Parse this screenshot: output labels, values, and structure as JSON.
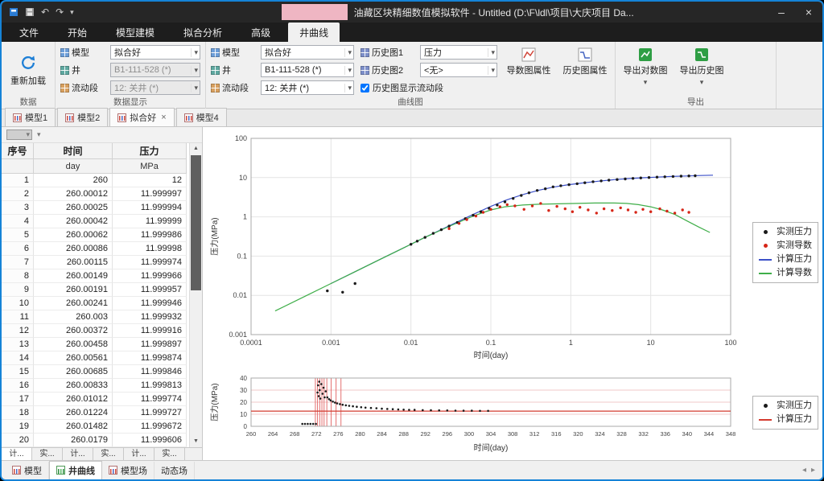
{
  "window": {
    "title": "油藏区块精细数值模拟软件 - Untitled (D:\\F\\ldl\\项目\\大庆项目 Da...",
    "controls": {
      "minimize": "–",
      "close": "×"
    }
  },
  "icons": {
    "caret": "▾",
    "close": "×",
    "minimize": "–",
    "undo": "↶",
    "redo": "↷",
    "up": "▲",
    "down": "▼",
    "back": "◂",
    "forward": "▸"
  },
  "menu": {
    "tabs": [
      "文件",
      "开始",
      "模型建模",
      "拟合分析",
      "高级",
      "井曲线"
    ],
    "active": "井曲线"
  },
  "ribbon": {
    "data_group": {
      "label": "数据",
      "reload_button": "重新加载"
    },
    "display_group": {
      "label": "数据显示",
      "rows": [
        {
          "label": "模型",
          "value": "拟合好",
          "enabled": true
        },
        {
          "label": "井",
          "value": "B1-111-528 (*)",
          "enabled": false
        },
        {
          "label": "流动段",
          "value": "12: 关井 (*)",
          "enabled": false
        }
      ]
    },
    "curve_group": {
      "label": "曲线图",
      "col1": [
        {
          "label": "模型",
          "value": "拟合好"
        },
        {
          "label": "井",
          "value": "B1-111-528 (*)"
        },
        {
          "label": "流动段",
          "value": "12: 关井 (*)"
        }
      ],
      "col2": [
        {
          "label": "历史图1",
          "value": "压力"
        },
        {
          "label": "历史图2",
          "value": "<无>"
        }
      ],
      "checkbox": {
        "label": "历史图显示流动段",
        "checked": "checked"
      },
      "buttons": [
        {
          "label": "导数图属性"
        },
        {
          "label": "历史图属性"
        }
      ]
    },
    "export_group": {
      "label": "导出",
      "buttons": [
        {
          "label": "导出对数图"
        },
        {
          "label": "导出历史图"
        }
      ]
    }
  },
  "doc_tabs": [
    {
      "label": "模型1"
    },
    {
      "label": "模型2"
    },
    {
      "label": "拟合好",
      "active": true,
      "closable": true
    },
    {
      "label": "模型4"
    }
  ],
  "table": {
    "headers": [
      "序号",
      "时间",
      "压力"
    ],
    "units": [
      "",
      "day",
      "MPa"
    ],
    "rows": [
      [
        "1",
        "260",
        "12"
      ],
      [
        "2",
        "260.00012",
        "11.999997"
      ],
      [
        "3",
        "260.00025",
        "11.999994"
      ],
      [
        "4",
        "260.00042",
        "11.99999"
      ],
      [
        "5",
        "260.00062",
        "11.999986"
      ],
      [
        "6",
        "260.00086",
        "11.99998"
      ],
      [
        "7",
        "260.00115",
        "11.999974"
      ],
      [
        "8",
        "260.00149",
        "11.999966"
      ],
      [
        "9",
        "260.00191",
        "11.999957"
      ],
      [
        "10",
        "260.00241",
        "11.999946"
      ],
      [
        "11",
        "260.003",
        "11.999932"
      ],
      [
        "12",
        "260.00372",
        "11.999916"
      ],
      [
        "13",
        "260.00458",
        "11.999897"
      ],
      [
        "14",
        "260.00561",
        "11.999874"
      ],
      [
        "15",
        "260.00685",
        "11.999846"
      ],
      [
        "16",
        "260.00833",
        "11.999813"
      ],
      [
        "17",
        "260.01012",
        "11.999774"
      ],
      [
        "18",
        "260.01224",
        "11.999727"
      ],
      [
        "19",
        "260.01482",
        "11.999672"
      ],
      [
        "20",
        "260.0179",
        "11.999606"
      ]
    ],
    "sheet_tabs": [
      "计...",
      "实...",
      "计...",
      "实...",
      "计...",
      "实..."
    ]
  },
  "status_bar": {
    "tabs": [
      {
        "label": "模型"
      },
      {
        "label": "井曲线",
        "active": true
      },
      {
        "label": "模型场"
      },
      {
        "label": "动态场"
      }
    ]
  },
  "chart_data": [
    {
      "type": "scatter",
      "title": "",
      "xlabel": "时间(day)",
      "ylabel": "压力(MPa)",
      "xscale": "log",
      "yscale": "log",
      "xlim": [
        0.0001,
        100
      ],
      "ylim": [
        0.001,
        100
      ],
      "x_ticks": [
        "0.0001",
        "0.001",
        "0.01",
        "0.1",
        "1",
        "10",
        "100"
      ],
      "y_ticks": [
        "100",
        "10",
        "1",
        "0.1",
        "0.01",
        "0.001"
      ],
      "grid": true,
      "grid_color": "#e4e4e4",
      "legend_position": "right",
      "series": [
        {
          "name": "实测压力",
          "kind": "scatter",
          "color": "#1a1a1a",
          "points": [
            [
              0.0009,
              0.013
            ],
            [
              0.0014,
              0.012
            ],
            [
              0.002,
              0.02
            ],
            [
              0.01,
              0.2
            ],
            [
              0.012,
              0.24
            ],
            [
              0.015,
              0.3
            ],
            [
              0.019,
              0.38
            ],
            [
              0.024,
              0.47
            ],
            [
              0.03,
              0.58
            ],
            [
              0.038,
              0.72
            ],
            [
              0.048,
              0.9
            ],
            [
              0.06,
              1.1
            ],
            [
              0.075,
              1.35
            ],
            [
              0.095,
              1.65
            ],
            [
              0.12,
              2.0
            ],
            [
              0.15,
              2.4
            ],
            [
              0.19,
              2.95
            ],
            [
              0.24,
              3.5
            ],
            [
              0.3,
              4.1
            ],
            [
              0.38,
              4.7
            ],
            [
              0.48,
              5.2
            ],
            [
              0.6,
              5.8
            ],
            [
              0.75,
              6.2
            ],
            [
              0.95,
              6.6
            ],
            [
              1.2,
              7.0
            ],
            [
              1.5,
              7.4
            ],
            [
              1.9,
              7.85
            ],
            [
              2.4,
              8.25
            ],
            [
              3,
              8.6
            ],
            [
              3.8,
              8.95
            ],
            [
              4.8,
              9.25
            ],
            [
              6,
              9.55
            ],
            [
              7.5,
              9.8
            ],
            [
              9.5,
              10.05
            ],
            [
              12,
              10.3
            ],
            [
              15,
              10.5
            ],
            [
              19,
              10.7
            ],
            [
              24,
              10.9
            ],
            [
              30,
              11.05
            ],
            [
              36,
              11.15
            ]
          ]
        },
        {
          "name": "实测导数",
          "kind": "scatter",
          "color": "#d62517",
          "points": [
            [
              0.03,
              0.5
            ],
            [
              0.04,
              0.68
            ],
            [
              0.05,
              0.85
            ],
            [
              0.065,
              1.05
            ],
            [
              0.08,
              1.3
            ],
            [
              0.1,
              1.55
            ],
            [
              0.13,
              1.8
            ],
            [
              0.16,
              2.05
            ],
            [
              0.2,
              1.9
            ],
            [
              0.26,
              1.55
            ],
            [
              0.33,
              1.9
            ],
            [
              0.42,
              2.2
            ],
            [
              0.53,
              1.45
            ],
            [
              0.67,
              1.85
            ],
            [
              0.85,
              1.6
            ],
            [
              1.05,
              1.35
            ],
            [
              1.3,
              1.75
            ],
            [
              1.65,
              1.5
            ],
            [
              2.1,
              1.25
            ],
            [
              2.6,
              1.6
            ],
            [
              3.3,
              1.45
            ],
            [
              4.2,
              1.7
            ],
            [
              5.2,
              1.5
            ],
            [
              6.5,
              1.3
            ],
            [
              8,
              1.55
            ],
            [
              10,
              1.35
            ],
            [
              13,
              1.6
            ],
            [
              16,
              1.4
            ],
            [
              20,
              1.25
            ],
            [
              25,
              1.5
            ],
            [
              30,
              1.3
            ]
          ]
        },
        {
          "name": "计算压力",
          "kind": "line",
          "color": "#3c50c8",
          "points": [
            [
              0.001,
              0.02
            ],
            [
              0.002,
              0.04
            ],
            [
              0.004,
              0.08
            ],
            [
              0.008,
              0.16
            ],
            [
              0.015,
              0.3
            ],
            [
              0.03,
              0.59
            ],
            [
              0.06,
              1.15
            ],
            [
              0.1,
              1.85
            ],
            [
              0.15,
              2.6
            ],
            [
              0.25,
              3.7
            ],
            [
              0.4,
              4.8
            ],
            [
              0.6,
              5.7
            ],
            [
              0.9,
              6.5
            ],
            [
              1.4,
              7.3
            ],
            [
              2.2,
              8.1
            ],
            [
              3.5,
              8.9
            ],
            [
              5.5,
              9.5
            ],
            [
              8,
              9.9
            ],
            [
              12,
              10.3
            ],
            [
              18,
              10.7
            ],
            [
              28,
              11.0
            ],
            [
              42,
              11.3
            ],
            [
              60,
              11.5
            ]
          ]
        },
        {
          "name": "计算导数",
          "kind": "line",
          "color": "#3fae49",
          "points": [
            [
              0.0002,
              0.004
            ],
            [
              0.0005,
              0.01
            ],
            [
              0.001,
              0.02
            ],
            [
              0.002,
              0.04
            ],
            [
              0.004,
              0.08
            ],
            [
              0.008,
              0.16
            ],
            [
              0.015,
              0.3
            ],
            [
              0.03,
              0.57
            ],
            [
              0.06,
              1.05
            ],
            [
              0.1,
              1.5
            ],
            [
              0.15,
              1.8
            ],
            [
              0.25,
              2.0
            ],
            [
              0.4,
              2.1
            ],
            [
              0.7,
              2.15
            ],
            [
              1.2,
              2.2
            ],
            [
              2,
              2.25
            ],
            [
              3.5,
              2.25
            ],
            [
              5,
              2.2
            ],
            [
              7,
              2.05
            ],
            [
              10,
              1.8
            ],
            [
              14,
              1.5
            ],
            [
              20,
              1.15
            ],
            [
              28,
              0.8
            ],
            [
              40,
              0.55
            ],
            [
              55,
              0.4
            ]
          ]
        }
      ]
    },
    {
      "type": "line",
      "title": "",
      "xlabel": "时间(day)",
      "ylabel": "压力(MPa)",
      "xscale": "linear",
      "yscale": "linear",
      "xlim": [
        260,
        348
      ],
      "ylim": [
        0,
        40
      ],
      "x_ticks": [
        "260",
        "264",
        "268",
        "272",
        "276",
        "280",
        "284",
        "288",
        "292",
        "296",
        "300",
        "304",
        "308",
        "312",
        "316",
        "320",
        "324",
        "328",
        "332",
        "336",
        "340",
        "344",
        "348"
      ],
      "y_ticks": [
        "0",
        "10",
        "20",
        "30",
        "40"
      ],
      "grid": true,
      "grid_color": "#f2c9c9",
      "vertical_grid": false,
      "flow_segment_lines": [
        271.8,
        272.2,
        272.6,
        273.0,
        273.4,
        273.9,
        274.7,
        275.6,
        276.5
      ],
      "legend_position": "right",
      "series": [
        {
          "name": "实测压力",
          "kind": "scatter",
          "color": "#1a1a1a",
          "points": [
            [
              269.4,
              2
            ],
            [
              269.9,
              2
            ],
            [
              270.4,
              2
            ],
            [
              270.9,
              2
            ],
            [
              271.4,
              2
            ],
            [
              271.9,
              2
            ],
            [
              272.2,
              28
            ],
            [
              272.3,
              34
            ],
            [
              272.4,
              25
            ],
            [
              272.5,
              37
            ],
            [
              272.6,
              30
            ],
            [
              272.7,
              23
            ],
            [
              272.9,
              35
            ],
            [
              273.1,
              27
            ],
            [
              273.3,
              32
            ],
            [
              273.5,
              24
            ],
            [
              273.7,
              29
            ],
            [
              274,
              24
            ],
            [
              274.3,
              22.5
            ],
            [
              274.6,
              21.5
            ],
            [
              275,
              20.5
            ],
            [
              275.4,
              19.7
            ],
            [
              275.8,
              19
            ],
            [
              276.3,
              18.4
            ],
            [
              276.8,
              17.9
            ],
            [
              277.4,
              17.4
            ],
            [
              278,
              17
            ],
            [
              278.7,
              16.6
            ],
            [
              279.4,
              16.2
            ],
            [
              280.2,
              15.8
            ],
            [
              281,
              15.5
            ],
            [
              282,
              15.2
            ],
            [
              283,
              14.9
            ],
            [
              284,
              14.6
            ],
            [
              285,
              14.4
            ],
            [
              286,
              14.2
            ],
            [
              287,
              14
            ],
            [
              288,
              13.8
            ],
            [
              289,
              13.7
            ],
            [
              290,
              13.6
            ],
            [
              291.5,
              13.4
            ],
            [
              293,
              13.3
            ],
            [
              294.5,
              13.2
            ],
            [
              296,
              13.1
            ],
            [
              297.5,
              13
            ],
            [
              299,
              12.9
            ],
            [
              300.5,
              12.9
            ],
            [
              302,
              12.8
            ],
            [
              303.5,
              12.8
            ]
          ]
        },
        {
          "name": "计算压力",
          "kind": "line",
          "color": "#d43a2f",
          "points": [
            [
              260,
              12.6
            ],
            [
              348,
              12.6
            ]
          ]
        }
      ]
    }
  ]
}
